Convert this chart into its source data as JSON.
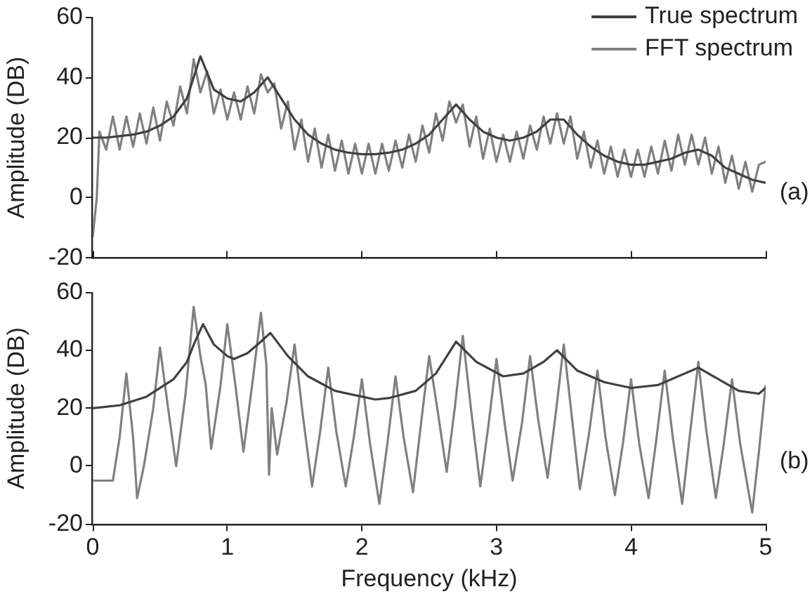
{
  "chart_data": [
    {
      "type": "line",
      "ylabel": "Amplitude (DB)",
      "xlim": [
        0,
        5
      ],
      "xticks": [
        0,
        1,
        2,
        3,
        4,
        5
      ],
      "ylim": [
        -20,
        60
      ],
      "yticks": [
        -20,
        0,
        20,
        40,
        60
      ],
      "tick_labels": "y",
      "legend": "top right",
      "marker": "none",
      "line_style": "solid",
      "grid": false,
      "annotations": [
        "(a)"
      ],
      "series": [
        {
          "name": "True spectrum",
          "color": "#404040",
          "x": [
            0,
            0.1,
            0.2,
            0.3,
            0.4,
            0.5,
            0.6,
            0.7,
            0.8,
            0.9,
            1.0,
            1.1,
            1.2,
            1.3,
            1.4,
            1.5,
            1.6,
            1.7,
            1.8,
            1.9,
            2.0,
            2.1,
            2.2,
            2.3,
            2.4,
            2.5,
            2.6,
            2.7,
            2.8,
            2.9,
            3.0,
            3.1,
            3.2,
            3.3,
            3.4,
            3.5,
            3.6,
            3.7,
            3.8,
            3.9,
            4.0,
            4.1,
            4.2,
            4.3,
            4.4,
            4.5,
            4.6,
            4.7,
            4.8,
            4.9,
            5.0
          ],
          "values": [
            20,
            20,
            20.5,
            21,
            22,
            24,
            27,
            33,
            47,
            36,
            33,
            32,
            35,
            40,
            33,
            26,
            21,
            18,
            16,
            15,
            14.5,
            14.5,
            15,
            16,
            18,
            21,
            26,
            31,
            26,
            22,
            20,
            19,
            20,
            22,
            26,
            26,
            21,
            17,
            14,
            12,
            11,
            11,
            12,
            13,
            15,
            16,
            14,
            10,
            8,
            6,
            5
          ]
        },
        {
          "name": "FFT spectrum",
          "color": "#808080",
          "x": [
            0,
            0.03,
            0.05,
            0.1,
            0.15,
            0.2,
            0.25,
            0.3,
            0.35,
            0.4,
            0.45,
            0.5,
            0.55,
            0.6,
            0.65,
            0.7,
            0.75,
            0.8,
            0.85,
            0.9,
            0.95,
            1.0,
            1.05,
            1.1,
            1.15,
            1.2,
            1.25,
            1.3,
            1.35,
            1.4,
            1.45,
            1.5,
            1.55,
            1.6,
            1.65,
            1.7,
            1.75,
            1.8,
            1.85,
            1.9,
            1.95,
            2.0,
            2.05,
            2.1,
            2.15,
            2.2,
            2.25,
            2.3,
            2.35,
            2.4,
            2.45,
            2.5,
            2.55,
            2.6,
            2.65,
            2.7,
            2.75,
            2.8,
            2.85,
            2.9,
            2.95,
            3.0,
            3.05,
            3.1,
            3.15,
            3.2,
            3.25,
            3.3,
            3.35,
            3.4,
            3.45,
            3.5,
            3.55,
            3.6,
            3.65,
            3.7,
            3.75,
            3.8,
            3.85,
            3.9,
            3.95,
            4.0,
            4.05,
            4.1,
            4.15,
            4.2,
            4.25,
            4.3,
            4.35,
            4.4,
            4.45,
            4.5,
            4.55,
            4.6,
            4.65,
            4.7,
            4.75,
            4.8,
            4.85,
            4.9,
            4.95,
            5.0
          ],
          "values": [
            -13,
            0,
            22,
            16,
            27,
            16,
            27,
            17,
            28,
            18,
            30,
            19,
            32,
            24,
            37,
            28,
            46,
            35,
            42,
            28,
            36,
            26,
            35,
            26,
            37,
            28,
            41,
            35,
            38,
            23,
            32,
            16,
            26,
            12,
            23,
            10,
            21,
            9,
            19,
            8,
            18,
            8,
            18,
            8,
            18,
            9,
            19,
            10,
            21,
            12,
            24,
            15,
            28,
            19,
            32,
            25,
            31,
            17,
            27,
            13,
            23,
            12,
            21,
            12,
            22,
            13,
            24,
            16,
            27,
            18,
            28,
            18,
            27,
            13,
            22,
            10,
            19,
            8,
            17,
            7,
            16,
            7,
            16,
            7,
            17,
            8,
            19,
            9,
            21,
            11,
            21,
            11,
            20,
            8,
            17,
            5,
            14,
            3,
            12,
            2,
            11,
            12
          ]
        }
      ]
    },
    {
      "type": "line",
      "xlabel": "Frequency (kHz)",
      "ylabel": "Amplitude (DB)",
      "xlim": [
        0,
        5
      ],
      "xticks": [
        0,
        1,
        2,
        3,
        4,
        5
      ],
      "ylim": [
        -20,
        60
      ],
      "yticks": [
        -20,
        0,
        20,
        40,
        60
      ],
      "marker": "none",
      "line_style": "solid",
      "grid": false,
      "annotations": [
        "(b)"
      ],
      "series": [
        {
          "color": "#404040",
          "x": [
            0,
            0.2,
            0.4,
            0.6,
            0.7,
            0.76,
            0.82,
            0.9,
            1.0,
            1.05,
            1.15,
            1.25,
            1.32,
            1.45,
            1.6,
            1.8,
            2.0,
            2.1,
            2.2,
            2.4,
            2.55,
            2.7,
            2.85,
            3.05,
            3.2,
            3.35,
            3.45,
            3.6,
            3.8,
            4.0,
            4.2,
            4.35,
            4.5,
            4.65,
            4.8,
            4.95,
            5.0
          ],
          "values": [
            20,
            21,
            24,
            30,
            36,
            43,
            49,
            42,
            38,
            37,
            39,
            43,
            46,
            38,
            31,
            26,
            24,
            23,
            23.5,
            26,
            32,
            43,
            36,
            31,
            32,
            36,
            40,
            33,
            29,
            27,
            28,
            31,
            34,
            30,
            26,
            25,
            27
          ]
        },
        {
          "color": "#808080",
          "x": [
            0,
            0.15,
            0.2,
            0.25,
            0.3,
            0.33,
            0.38,
            0.45,
            0.5,
            0.56,
            0.62,
            0.69,
            0.75,
            0.8,
            0.84,
            0.88,
            0.95,
            1.0,
            1.06,
            1.12,
            1.19,
            1.25,
            1.29,
            1.31,
            1.33,
            1.37,
            1.44,
            1.5,
            1.56,
            1.63,
            1.69,
            1.75,
            1.81,
            1.88,
            1.94,
            2.0,
            2.06,
            2.13,
            2.19,
            2.25,
            2.31,
            2.38,
            2.44,
            2.5,
            2.56,
            2.63,
            2.69,
            2.75,
            2.81,
            2.88,
            2.94,
            3.0,
            3.06,
            3.12,
            3.19,
            3.25,
            3.31,
            3.38,
            3.44,
            3.5,
            3.56,
            3.62,
            3.69,
            3.75,
            3.81,
            3.88,
            3.94,
            4.0,
            4.06,
            4.13,
            4.19,
            4.25,
            4.31,
            4.38,
            4.44,
            4.5,
            4.56,
            4.63,
            4.69,
            4.75,
            4.81,
            4.9,
            4.95,
            5.0
          ],
          "values": [
            -5,
            -5,
            10,
            32,
            10,
            -11,
            0,
            20,
            41,
            20,
            0,
            25,
            55,
            38,
            28,
            6,
            28,
            49,
            28,
            5,
            30,
            53,
            35,
            -3,
            20,
            4,
            22,
            42,
            18,
            -7,
            12,
            34,
            12,
            -7,
            10,
            30,
            8,
            -13,
            8,
            31,
            10,
            -9,
            15,
            38,
            20,
            -2,
            20,
            45,
            20,
            -7,
            14,
            37,
            15,
            -5,
            15,
            38,
            16,
            -4,
            18,
            42,
            17,
            -8,
            12,
            33,
            10,
            -10,
            8,
            30,
            8,
            -11,
            10,
            33,
            10,
            -13,
            12,
            36,
            12,
            -11,
            8,
            30,
            8,
            -16,
            5,
            28
          ]
        }
      ]
    }
  ]
}
